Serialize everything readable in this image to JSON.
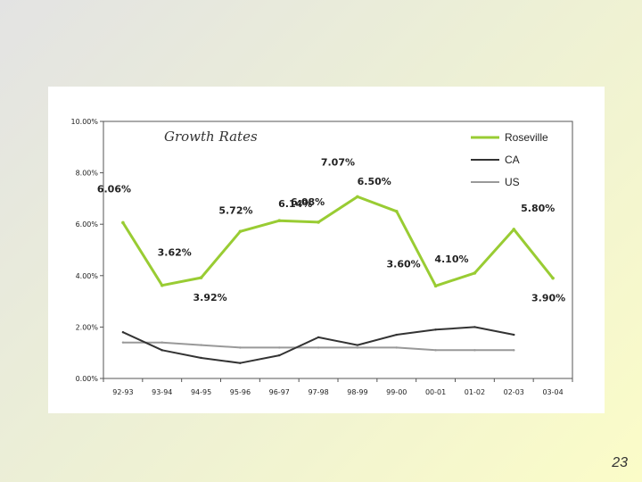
{
  "chart_data": {
    "type": "line",
    "title": "Growth Rates",
    "categories": [
      "92-93",
      "93-94",
      "94-95",
      "95-96",
      "96-97",
      "97-98",
      "98-99",
      "99-00",
      "00-01",
      "01-02",
      "02-03",
      "03-04"
    ],
    "y_ticks": [
      "0.00%",
      "2.00%",
      "4.00%",
      "6.00%",
      "8.00%",
      "10.00%"
    ],
    "ylim": [
      0,
      10
    ],
    "legend_position": "top-right",
    "series": [
      {
        "name": "Roseville",
        "color": "#99cc33",
        "values": [
          6.06,
          3.62,
          3.92,
          5.72,
          6.14,
          6.08,
          7.07,
          6.5,
          3.6,
          4.1,
          5.8,
          3.9
        ],
        "labels": [
          "6.06%",
          "3.62%",
          "3.92%",
          "5.72%",
          "6.14%",
          "6.08%",
          "7.07%",
          "6.50%",
          "3.60%",
          "4.10%",
          "5.80%",
          "3.90%"
        ]
      },
      {
        "name": "CA",
        "color": "#333333",
        "values": [
          1.8,
          1.1,
          0.8,
          0.6,
          0.9,
          1.6,
          1.3,
          1.7,
          1.9,
          2.0,
          1.7,
          null
        ]
      },
      {
        "name": "US",
        "color": "#999999",
        "values": [
          1.4,
          1.4,
          1.3,
          1.2,
          1.2,
          1.2,
          1.2,
          1.2,
          1.1,
          1.1,
          1.1,
          null
        ]
      }
    ]
  },
  "slide_number": "23"
}
